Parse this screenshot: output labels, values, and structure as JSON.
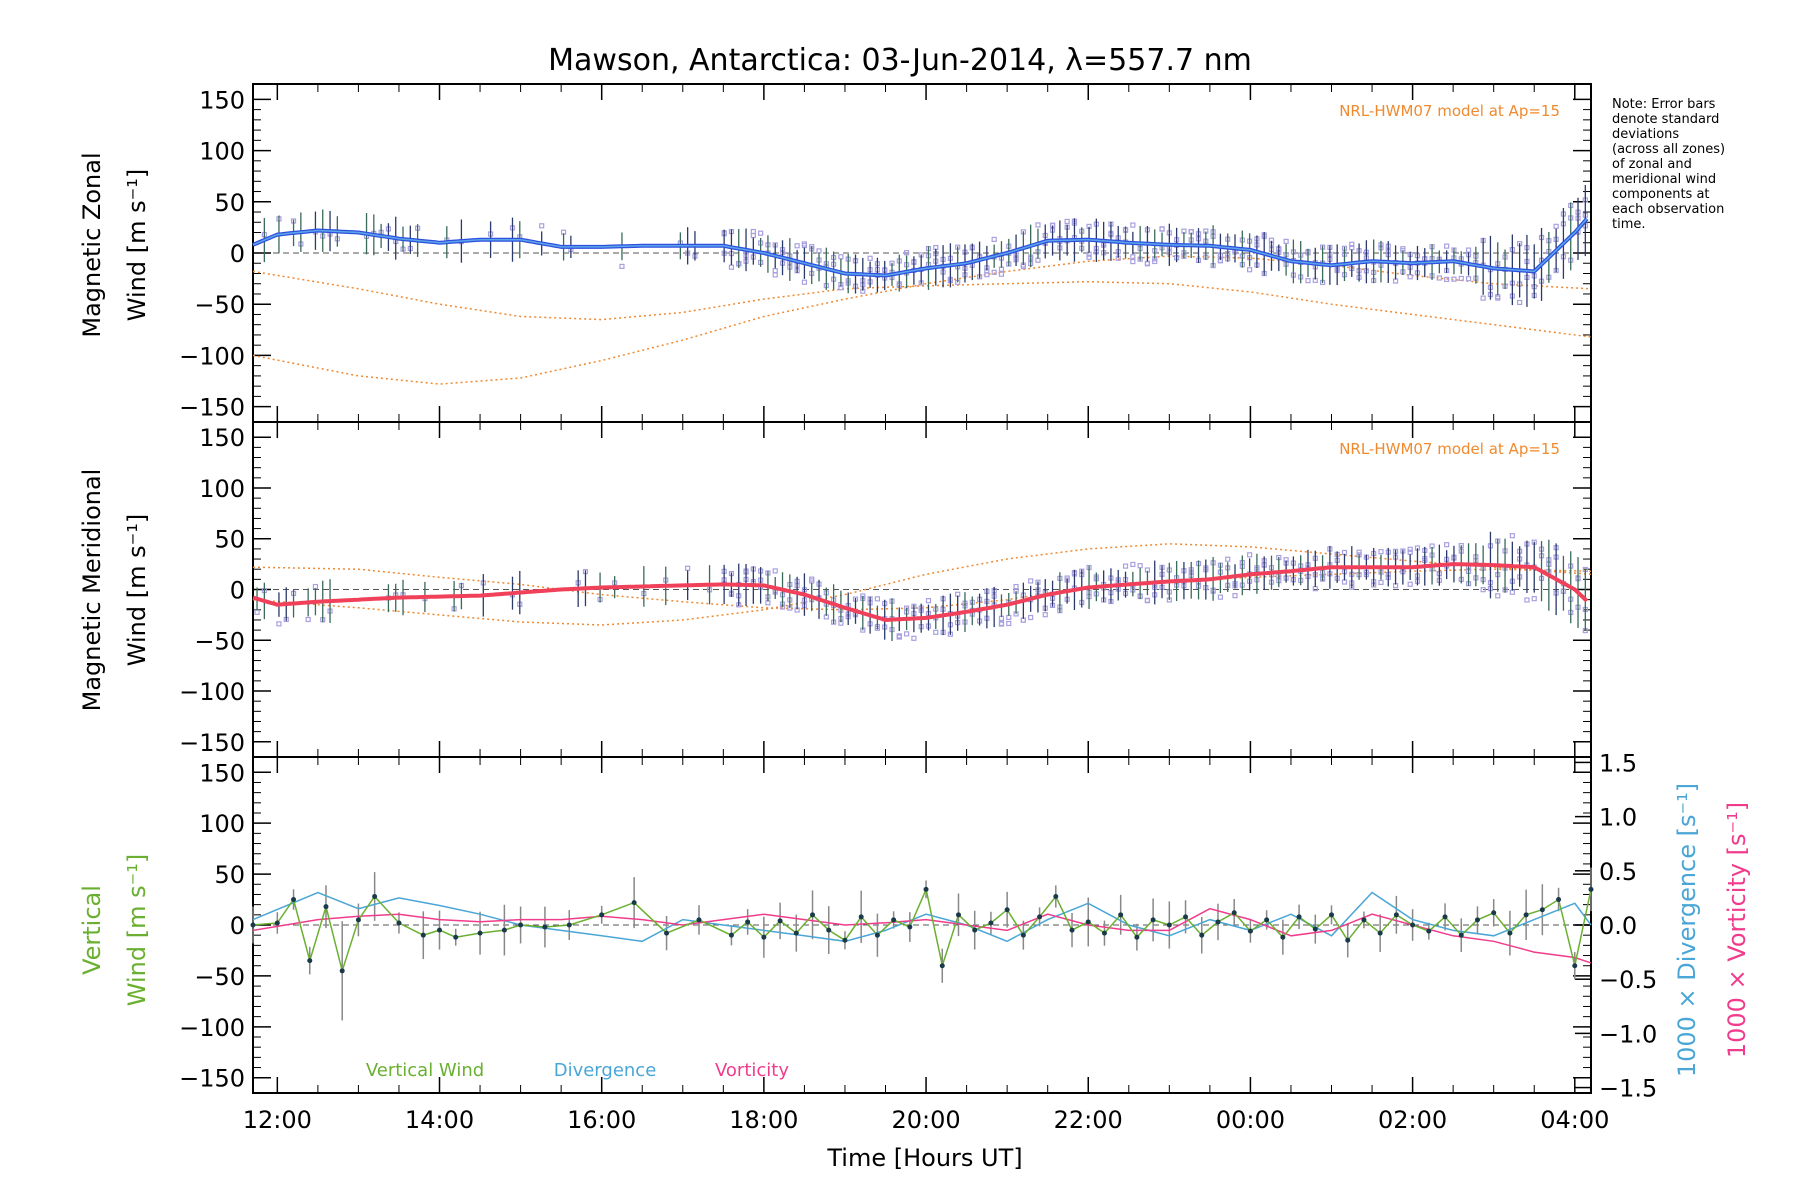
{
  "figure": {
    "title": "Mawson, Antarctica: 03-Jun-2014, λ=557.7 nm",
    "note_lines": [
      "Note: Error bars",
      "denote standard",
      "deviations",
      "(across all zones)",
      "of zonal and",
      "meridional wind",
      "components at",
      "each observation",
      "time."
    ],
    "xlabel": "Time [Hours UT]",
    "x_ticks": [
      "12:00",
      "14:00",
      "16:00",
      "18:00",
      "20:00",
      "22:00",
      "00:00",
      "02:00",
      "04:00"
    ],
    "y_ticks": [
      "150",
      "100",
      "50",
      "0",
      "−50",
      "−100",
      "−150"
    ],
    "right_ticks": [
      "1.5",
      "1.0",
      "0.5",
      "0.0",
      "−0.5",
      "−1.0",
      "−1.5"
    ]
  },
  "panels": {
    "zonal": {
      "ylabel_line1": "Magnetic Zonal",
      "ylabel_line2": "Wind [m s⁻¹]",
      "model_label": "NRL-HWM07 model at Ap=15"
    },
    "meridional": {
      "ylabel_line1": "Magnetic Meridional",
      "ylabel_line2": "Wind [m s⁻¹]",
      "model_label": "NRL-HWM07 model at Ap=15"
    },
    "vertical": {
      "ylabel_line1": "Vertical",
      "ylabel_line2": "Wind [m s⁻¹]",
      "right_label_div": "1000 × Divergence [s⁻¹]",
      "right_label_vort": "1000 × Vorticity [s⁻¹]",
      "legend": [
        "Vertical Wind",
        "Divergence",
        "Vorticity"
      ]
    }
  },
  "colors": {
    "zonal": "#2f4fe0",
    "zonal_light": "#5aa6e8",
    "meridional": "#f0405a",
    "model": "#f08a30",
    "vertical": "#6ab030",
    "divergence": "#4aa6d6",
    "vorticity": "#f03c8c",
    "scatter": "#a8a0e0",
    "errorbar": "#333333"
  },
  "chart_data": [
    {
      "type": "line",
      "title": "Mawson, Antarctica: 03-Jun-2014, λ=557.7 nm",
      "xlabel": "Time [Hours UT]",
      "ylabel": "Magnetic Zonal Wind [m s⁻¹]",
      "ylim": [
        -165,
        165
      ],
      "x_range_hours_ut": [
        11.7,
        28.2
      ],
      "series": [
        {
          "name": "Zonal wind",
          "x": [
            11.7,
            12.0,
            12.5,
            13.0,
            13.5,
            14.0,
            14.5,
            15.0,
            15.5,
            16.0,
            16.5,
            17.0,
            17.5,
            18.0,
            18.5,
            19.0,
            19.5,
            20.0,
            20.5,
            21.0,
            21.5,
            22.0,
            22.5,
            23.0,
            23.5,
            24.0,
            24.5,
            25.0,
            25.5,
            26.0,
            26.5,
            27.0,
            27.5,
            28.0,
            28.2
          ],
          "values": [
            8,
            18,
            22,
            20,
            14,
            10,
            13,
            13,
            6,
            6,
            7,
            7,
            7,
            0,
            -10,
            -20,
            -22,
            -15,
            -10,
            0,
            12,
            13,
            10,
            8,
            7,
            3,
            -8,
            -12,
            -8,
            -10,
            -8,
            -15,
            -18,
            20,
            38
          ]
        },
        {
          "name": "NRL-HWM07 model at Ap=15",
          "x": [
            11.7,
            13.0,
            14.0,
            15.0,
            16.0,
            17.0,
            18.0,
            19.0,
            20.0,
            21.0,
            22.0,
            23.0,
            24.0,
            25.0,
            26.0,
            27.0,
            28.2
          ],
          "values": [
            -18,
            -35,
            -50,
            -62,
            -65,
            -58,
            -45,
            -35,
            -32,
            -30,
            -28,
            -30,
            -38,
            -50,
            -60,
            -70,
            -82
          ]
        },
        {
          "name": "NRL-HWM07 model at Ap=15",
          "x": [
            11.7,
            13.0,
            14.0,
            15.0,
            16.0,
            17.0,
            18.0,
            19.0,
            20.0,
            21.0,
            22.0,
            23.0,
            24.0,
            25.0,
            26.0,
            27.0,
            28.2
          ],
          "values": [
            -100,
            -120,
            -128,
            -122,
            -105,
            -85,
            -62,
            -45,
            -30,
            -18,
            -8,
            -3,
            -5,
            -12,
            -22,
            -30,
            -35
          ]
        }
      ]
    },
    {
      "type": "line",
      "xlabel": "Time [Hours UT]",
      "ylabel": "Magnetic Meridional Wind [m s⁻¹]",
      "ylim": [
        -165,
        165
      ],
      "series": [
        {
          "name": "Meridional wind",
          "x": [
            11.7,
            12.0,
            12.5,
            13.0,
            13.5,
            14.0,
            14.5,
            15.0,
            15.5,
            16.0,
            16.5,
            17.0,
            17.5,
            18.0,
            18.5,
            19.0,
            19.5,
            20.0,
            20.5,
            21.0,
            21.5,
            22.0,
            22.5,
            23.0,
            23.5,
            24.0,
            24.5,
            25.0,
            25.5,
            26.0,
            26.5,
            27.0,
            27.5,
            28.0,
            28.2
          ],
          "values": [
            -8,
            -15,
            -12,
            -10,
            -8,
            -7,
            -6,
            -3,
            0,
            2,
            3,
            4,
            5,
            4,
            -5,
            -18,
            -30,
            -28,
            -22,
            -15,
            -5,
            2,
            5,
            8,
            10,
            15,
            18,
            22,
            22,
            22,
            25,
            24,
            22,
            0,
            -15
          ]
        },
        {
          "name": "NRL-HWM07 model at Ap=15",
          "x": [
            11.7,
            13.0,
            14.0,
            15.0,
            16.0,
            17.0,
            18.0,
            19.0,
            20.0,
            21.0,
            22.0,
            23.0,
            24.0,
            25.0,
            26.0,
            27.0,
            28.2
          ],
          "values": [
            22,
            20,
            12,
            5,
            -5,
            -12,
            -18,
            -20,
            -18,
            -10,
            2,
            8,
            12,
            15,
            18,
            20,
            18
          ]
        },
        {
          "name": "NRL-HWM07 model at Ap=15",
          "x": [
            11.7,
            13.0,
            14.0,
            15.0,
            16.0,
            17.0,
            18.0,
            19.0,
            20.0,
            21.0,
            22.0,
            23.0,
            24.0,
            25.0,
            26.0,
            27.0,
            28.2
          ],
          "values": [
            -10,
            -18,
            -25,
            -32,
            -35,
            -30,
            -20,
            -5,
            15,
            30,
            40,
            45,
            42,
            35,
            28,
            22,
            15
          ]
        }
      ]
    },
    {
      "type": "line",
      "xlabel": "Time [Hours UT]",
      "ylabel": "Vertical Wind [m s⁻¹]",
      "ylim": [
        -165,
        165
      ],
      "y2lim": [
        -1.55,
        1.55
      ],
      "series": [
        {
          "name": "Vertical Wind",
          "axis": "left",
          "x": [
            11.7,
            12.0,
            12.2,
            12.4,
            12.6,
            12.8,
            13.0,
            13.2,
            13.5,
            13.8,
            14.0,
            14.2,
            14.5,
            14.8,
            15.0,
            15.3,
            15.6,
            16.0,
            16.4,
            16.8,
            17.2,
            17.6,
            17.8,
            18.0,
            18.2,
            18.4,
            18.6,
            18.8,
            19.0,
            19.2,
            19.4,
            19.6,
            19.8,
            20.0,
            20.2,
            20.4,
            20.6,
            20.8,
            21.0,
            21.2,
            21.4,
            21.6,
            21.8,
            22.0,
            22.2,
            22.4,
            22.6,
            22.8,
            23.0,
            23.2,
            23.4,
            23.6,
            23.8,
            24.0,
            24.2,
            24.4,
            24.6,
            24.8,
            25.0,
            25.2,
            25.4,
            25.6,
            25.8,
            26.0,
            26.2,
            26.4,
            26.6,
            26.8,
            27.0,
            27.2,
            27.4,
            27.6,
            27.8,
            28.0,
            28.2
          ],
          "values": [
            0,
            2,
            25,
            -35,
            18,
            -45,
            5,
            28,
            2,
            -10,
            -5,
            -12,
            -8,
            -5,
            0,
            -2,
            0,
            10,
            22,
            -8,
            5,
            -10,
            3,
            -12,
            4,
            -8,
            10,
            -5,
            -15,
            8,
            -10,
            5,
            -2,
            35,
            -40,
            10,
            -5,
            2,
            15,
            -10,
            8,
            28,
            -5,
            3,
            -8,
            10,
            -12,
            5,
            0,
            8,
            -10,
            3,
            12,
            -6,
            5,
            -12,
            8,
            -4,
            10,
            -15,
            5,
            -8,
            10,
            0,
            -6,
            8,
            -10,
            5,
            12,
            -8,
            10,
            15,
            25,
            -40,
            35
          ]
        },
        {
          "name": "Divergence",
          "axis": "right",
          "x": [
            11.7,
            12.5,
            13.0,
            13.5,
            14.0,
            14.5,
            15.0,
            15.5,
            16.0,
            16.5,
            17.0,
            17.5,
            18.0,
            18.5,
            19.0,
            19.5,
            20.0,
            20.5,
            21.0,
            21.5,
            22.0,
            22.5,
            23.0,
            23.5,
            24.0,
            24.5,
            25.0,
            25.5,
            26.0,
            26.5,
            27.0,
            27.5,
            28.0,
            28.2
          ],
          "values": [
            0.05,
            0.3,
            0.15,
            0.25,
            0.18,
            0.1,
            0.0,
            -0.05,
            -0.1,
            -0.15,
            0.05,
            0.0,
            -0.05,
            -0.1,
            -0.15,
            -0.05,
            0.1,
            0.0,
            -0.15,
            0.05,
            0.2,
            0.0,
            -0.1,
            0.05,
            -0.05,
            0.1,
            -0.1,
            0.3,
            0.05,
            -0.05,
            -0.1,
            0.05,
            0.2,
            0.0
          ]
        },
        {
          "name": "Vorticity",
          "axis": "right",
          "x": [
            11.7,
            12.5,
            13.0,
            13.5,
            14.0,
            14.5,
            15.0,
            15.5,
            16.0,
            16.5,
            17.0,
            17.5,
            18.0,
            18.5,
            19.0,
            19.5,
            20.0,
            20.5,
            21.0,
            21.5,
            22.0,
            22.5,
            23.0,
            23.5,
            24.0,
            24.5,
            25.0,
            25.5,
            26.0,
            26.5,
            27.0,
            27.5,
            28.0,
            28.2
          ],
          "values": [
            -0.05,
            0.05,
            0.08,
            0.1,
            0.05,
            0.03,
            0.05,
            0.05,
            0.08,
            0.05,
            0.0,
            0.05,
            0.1,
            0.05,
            0.0,
            0.02,
            0.05,
            0.0,
            -0.05,
            0.1,
            0.0,
            -0.05,
            -0.05,
            0.15,
            0.05,
            -0.1,
            -0.05,
            0.1,
            0.0,
            -0.1,
            -0.15,
            -0.25,
            -0.3,
            -0.35
          ]
        }
      ]
    }
  ]
}
